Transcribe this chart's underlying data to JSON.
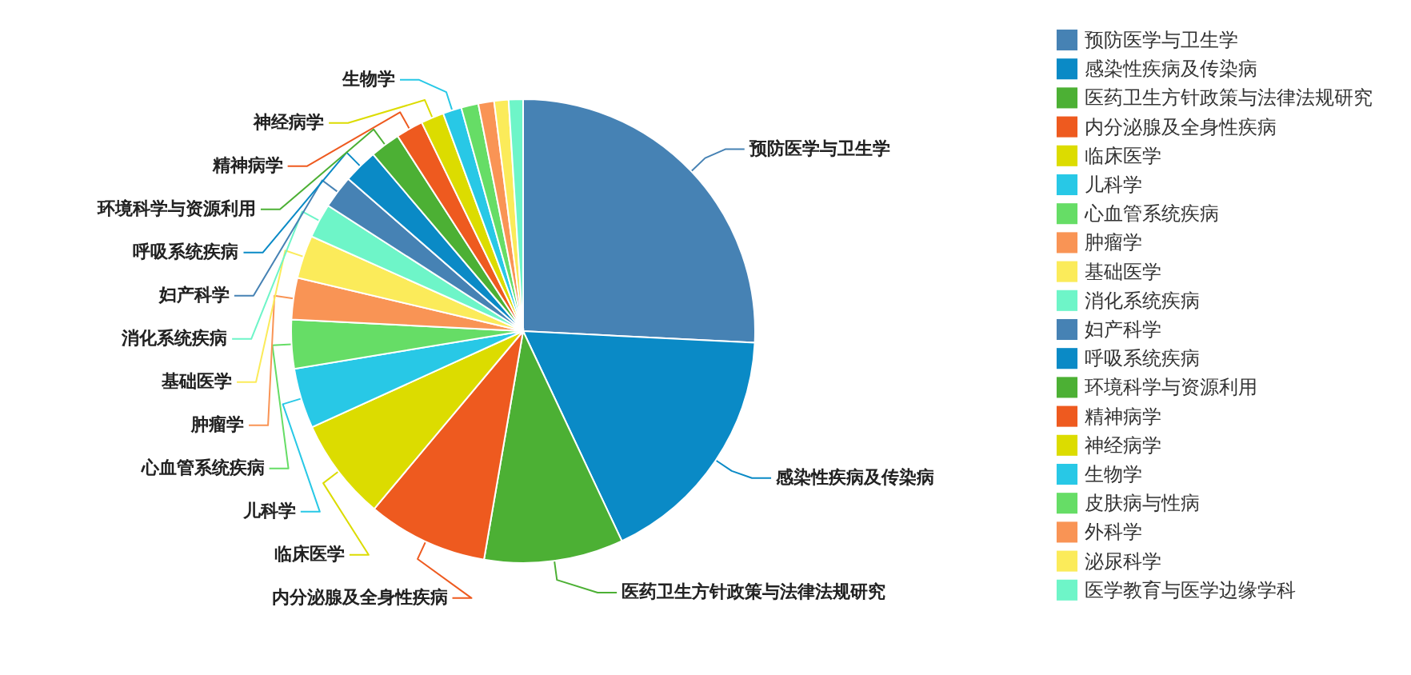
{
  "chart_data": {
    "type": "pie",
    "categories": [
      "预防医学与卫生学",
      "感染性疾病及传染病",
      "医药卫生方针政策与法律法规研究",
      "内分泌腺及全身性疾病",
      "临床医学",
      "儿科学",
      "心血管系统疾病",
      "肿瘤学",
      "基础医学",
      "消化系统疾病",
      "妇产科学",
      "呼吸系统疾病",
      "环境科学与资源利用",
      "精神病学",
      "神经病学",
      "生物学",
      "皮肤病与性病",
      "外科学",
      "泌尿科学",
      "医学教育与医学边缘学科"
    ],
    "values": [
      25.8,
      17.2,
      9.7,
      8.4,
      7.1,
      4.2,
      3.4,
      2.9,
      3.0,
      2.4,
      2.3,
      2.4,
      2.1,
      1.9,
      1.6,
      1.3,
      1.2,
      1.1,
      1.0,
      1.0
    ],
    "colors": [
      "#4682b4",
      "#0a8ac6",
      "#4cb034",
      "#ee5a1f",
      "#dcdc00",
      "#28c8e6",
      "#66dd66",
      "#f99455",
      "#fbeb5a",
      "#6ef5c8",
      "#4682b4",
      "#0a8ac6",
      "#4cb034",
      "#ee5a1f",
      "#dcdc00",
      "#28c8e6",
      "#66dd66",
      "#f99455",
      "#fbeb5a",
      "#6ef5c8"
    ],
    "legend": "top right"
  }
}
